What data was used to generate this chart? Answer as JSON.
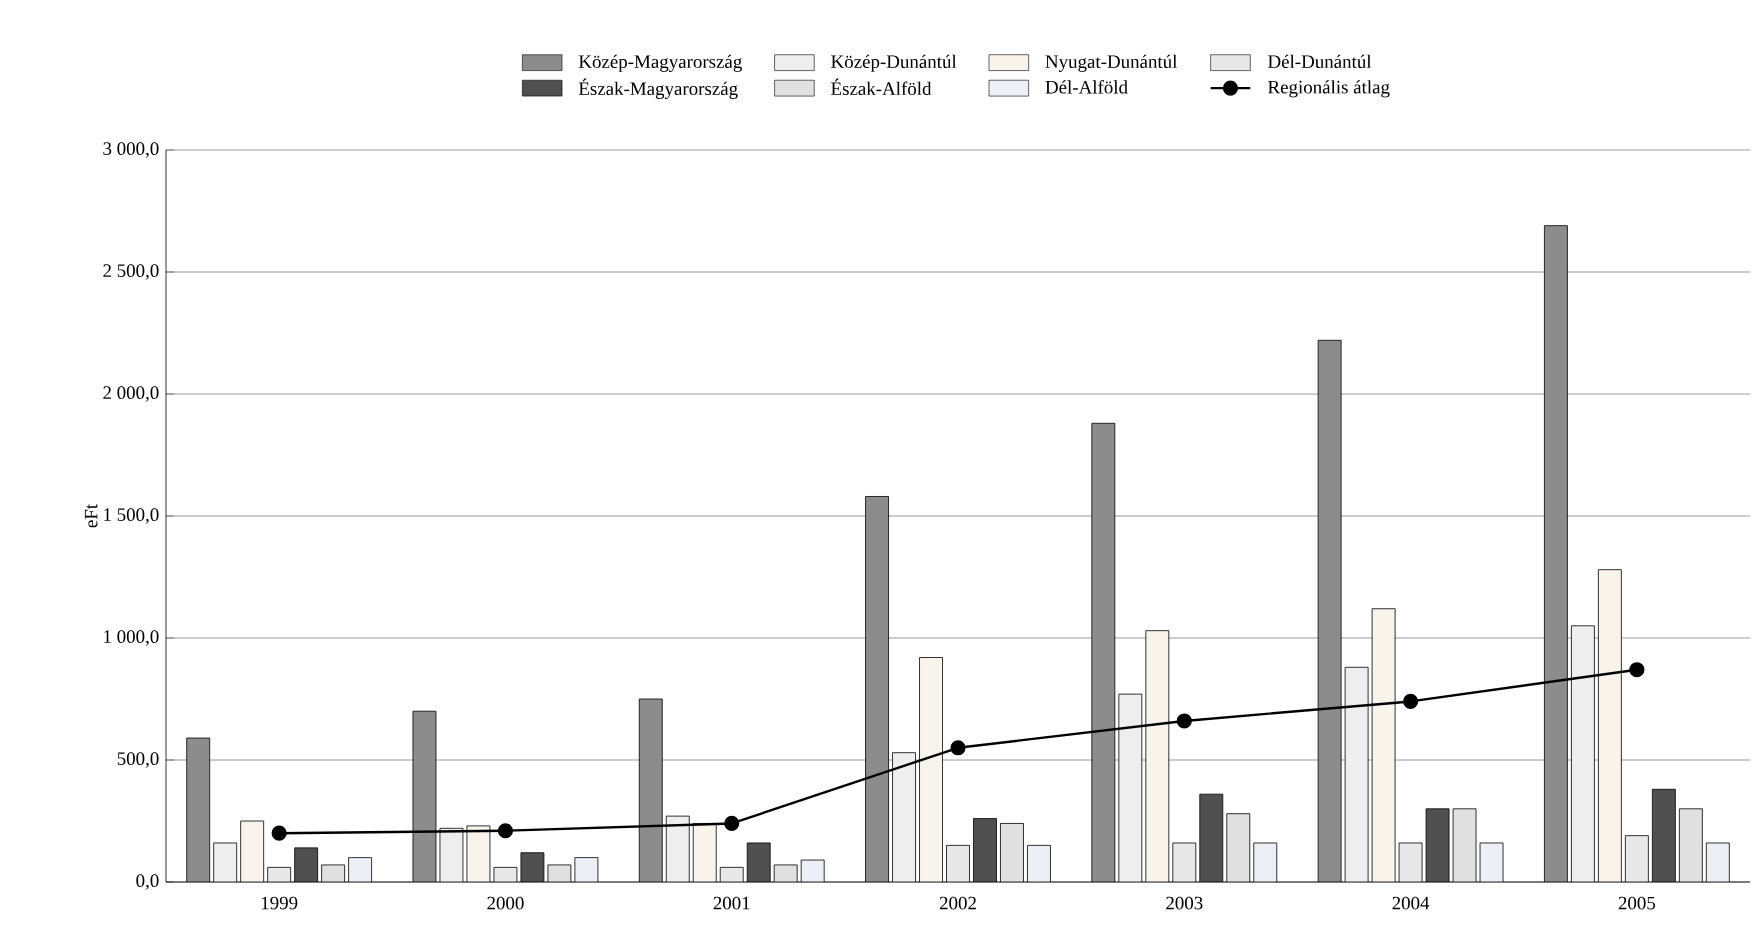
{
  "chart_data": {
    "type": "bar",
    "ylabel": "eFt",
    "categories": [
      "1999",
      "2000",
      "2001",
      "2002",
      "2003",
      "2004",
      "2005"
    ],
    "series": [
      {
        "name": "Közép-Magyarország",
        "color": "#8c8c8c",
        "values": [
          590,
          700,
          750,
          1580,
          1880,
          2220,
          2690
        ]
      },
      {
        "name": "Közép-Dunántúl",
        "color": "#eeeeee",
        "values": [
          160,
          220,
          270,
          530,
          770,
          880,
          1050
        ]
      },
      {
        "name": "Nyugat-Dunántúl",
        "color": "#f8f4ec",
        "values": [
          250,
          230,
          240,
          920,
          1030,
          1120,
          1280
        ]
      },
      {
        "name": "Dél-Dunántúl",
        "color": "#e8e8e8",
        "values": [
          60,
          60,
          60,
          150,
          160,
          160,
          190
        ]
      },
      {
        "name": "Észak-Magyarország",
        "color": "#505050",
        "values": [
          140,
          120,
          160,
          260,
          360,
          300,
          380
        ]
      },
      {
        "name": "Észak-Alföld",
        "color": "#e0e0e0",
        "values": [
          70,
          70,
          70,
          240,
          280,
          300,
          300
        ]
      },
      {
        "name": "Dél-Alföld",
        "color": "#ecf0f6",
        "values": [
          100,
          100,
          90,
          150,
          160,
          160,
          160
        ]
      },
      {
        "name": "Regionális átlag",
        "type": "line",
        "color": "#000000",
        "values": [
          200,
          210,
          240,
          550,
          660,
          740,
          870
        ]
      }
    ],
    "ylim": [
      0,
      3000
    ],
    "yticks": [
      {
        "value": 0,
        "label": "0,0"
      },
      {
        "value": 500,
        "label": "500,0"
      },
      {
        "value": 1000,
        "label": "1 000,0"
      },
      {
        "value": 1500,
        "label": "1 500,0"
      },
      {
        "value": 2000,
        "label": "2 000,0"
      },
      {
        "value": 2500,
        "label": "2 500,0"
      },
      {
        "value": 3000,
        "label": "3 000,0"
      }
    ],
    "grid": "y",
    "legend": "top",
    "marker": "circle",
    "line_style": "solid"
  }
}
